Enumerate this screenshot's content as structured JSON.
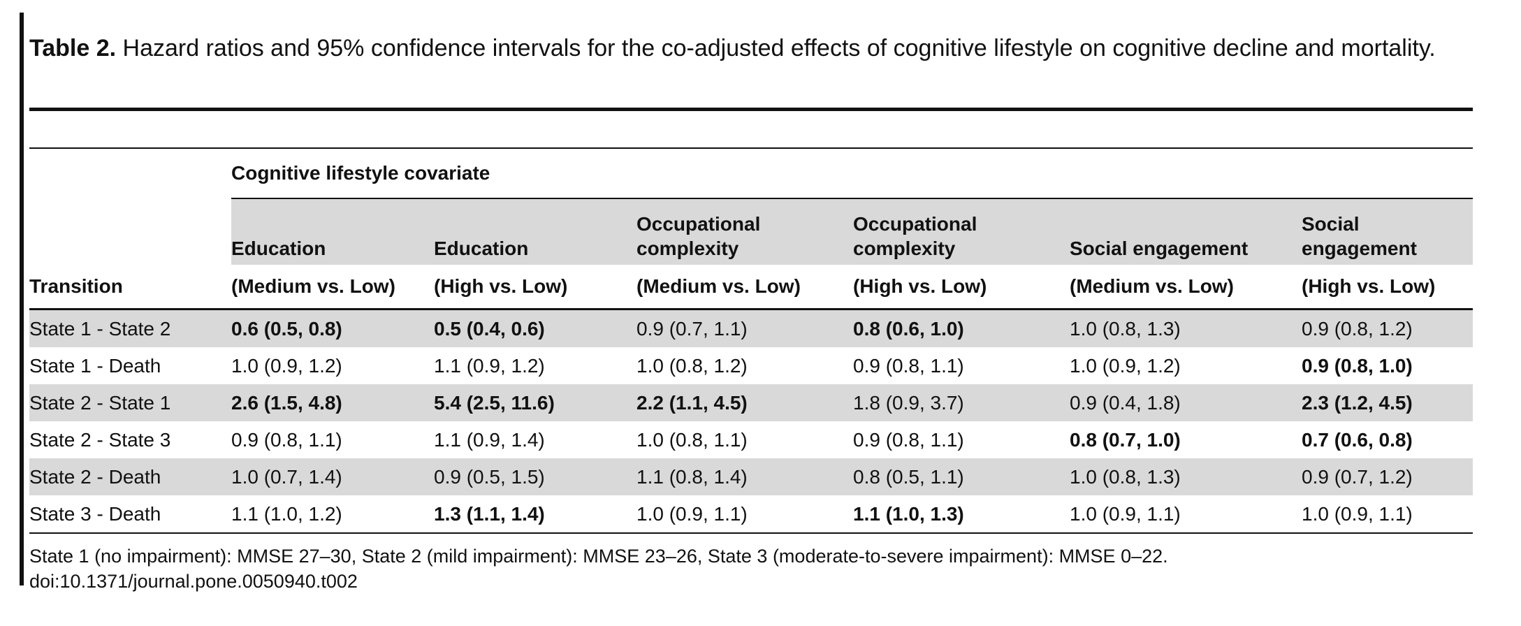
{
  "caption": {
    "label": "Table 2.",
    "text": " Hazard ratios and 95% confidence intervals for the co-adjusted effects of cognitive lifestyle on cognitive decline and mortality."
  },
  "table": {
    "group_header": "Cognitive lifestyle covariate",
    "transition_header": "Transition",
    "columns": [
      {
        "line1": "Education",
        "line2": "(Medium vs. Low)"
      },
      {
        "line1": "Education",
        "line2": "(High vs. Low)"
      },
      {
        "line1": "Occupational complexity",
        "line2": "(Medium vs. Low)"
      },
      {
        "line1": "Occupational complexity",
        "line2": "(High vs. Low)"
      },
      {
        "line1": "Social engagement",
        "line2": "(Medium vs. Low)"
      },
      {
        "line1": "Social engagement",
        "line2": "(High vs. Low)"
      }
    ],
    "rows": [
      {
        "transition": "State 1 - State 2",
        "cells": [
          "0.6 (0.5, 0.8)",
          "0.5 (0.4, 0.6)",
          "0.9 (0.7, 1.1)",
          "0.8 (0.6, 1.0)",
          "1.0 (0.8, 1.3)",
          "0.9 (0.8, 1.2)"
        ],
        "bold": [
          true,
          true,
          false,
          true,
          false,
          false
        ]
      },
      {
        "transition": "State 1 - Death",
        "cells": [
          "1.0 (0.9, 1.2)",
          "1.1 (0.9, 1.2)",
          "1.0 (0.8, 1.2)",
          "0.9 (0.8, 1.1)",
          "1.0 (0.9, 1.2)",
          "0.9 (0.8, 1.0)"
        ],
        "bold": [
          false,
          false,
          false,
          false,
          false,
          true
        ]
      },
      {
        "transition": "State 2 - State 1",
        "cells": [
          "2.6 (1.5, 4.8)",
          "5.4 (2.5, 11.6)",
          "2.2 (1.1, 4.5)",
          "1.8 (0.9, 3.7)",
          "0.9 (0.4, 1.8)",
          "2.3 (1.2, 4.5)"
        ],
        "bold": [
          true,
          true,
          true,
          false,
          false,
          true
        ]
      },
      {
        "transition": "State 2 - State 3",
        "cells": [
          "0.9 (0.8, 1.1)",
          "1.1 (0.9, 1.4)",
          "1.0 (0.8, 1.1)",
          "0.9 (0.8, 1.1)",
          "0.8 (0.7, 1.0)",
          "0.7 (0.6, 0.8)"
        ],
        "bold": [
          false,
          false,
          false,
          false,
          true,
          true
        ]
      },
      {
        "transition": "State 2 - Death",
        "cells": [
          "1.0 (0.7, 1.4)",
          "0.9 (0.5, 1.5)",
          "1.1 (0.8, 1.4)",
          "0.8 (0.5, 1.1)",
          "1.0 (0.8, 1.3)",
          "0.9 (0.7, 1.2)"
        ],
        "bold": [
          false,
          false,
          false,
          false,
          false,
          false
        ]
      },
      {
        "transition": "State 3 - Death",
        "cells": [
          "1.1 (1.0, 1.2)",
          "1.3 (1.1, 1.4)",
          "1.0 (0.9, 1.1)",
          "1.1 (1.0, 1.3)",
          "1.0 (0.9, 1.1)",
          "1.0 (0.9, 1.1)"
        ],
        "bold": [
          false,
          true,
          false,
          true,
          false,
          false
        ]
      }
    ]
  },
  "footnote": {
    "states": "State 1 (no impairment): MMSE 27–30, State 2 (mild impairment): MMSE 23–26, State 3 (moderate-to-severe impairment): MMSE 0–22.",
    "doi": "doi:10.1371/journal.pone.0050940.t002"
  }
}
